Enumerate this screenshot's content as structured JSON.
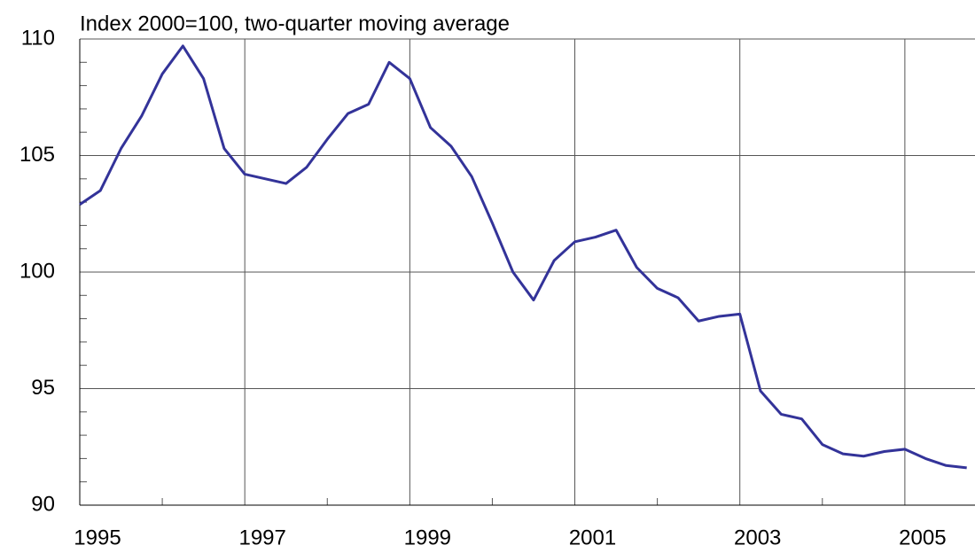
{
  "chart_data": {
    "type": "line",
    "title": "Index 2000=100, two-quarter moving average",
    "x": [
      1995,
      1995.25,
      1995.5,
      1995.75,
      1996,
      1996.25,
      1996.5,
      1996.75,
      1997,
      1997.25,
      1997.5,
      1997.75,
      1998,
      1998.25,
      1998.5,
      1998.75,
      1999,
      1999.25,
      1999.5,
      1999.75,
      2000,
      2000.25,
      2000.5,
      2000.75,
      2001,
      2001.25,
      2001.5,
      2001.75,
      2002,
      2002.25,
      2002.5,
      2002.75,
      2003,
      2003.25,
      2003.5,
      2003.75,
      2004,
      2004.25,
      2004.5,
      2004.75,
      2005,
      2005.25,
      2005.5,
      2005.75
    ],
    "series": [
      {
        "color": "#333399",
        "values": [
          102.9,
          103.5,
          105.3,
          106.7,
          108.5,
          109.7,
          108.3,
          105.3,
          104.2,
          104.0,
          103.8,
          104.5,
          105.7,
          106.8,
          107.2,
          109.0,
          108.3,
          106.2,
          105.4,
          104.1,
          102.1,
          100.0,
          98.8,
          100.5,
          101.3,
          101.5,
          101.8,
          100.2,
          99.3,
          98.9,
          97.9,
          98.1,
          98.2,
          94.9,
          93.9,
          93.7,
          92.6,
          92.2,
          92.1,
          92.3,
          92.4,
          92.0,
          91.7,
          91.6
        ]
      }
    ],
    "xlim": [
      1995,
      2005.85
    ],
    "xticks": [
      1995,
      1997,
      1999,
      2001,
      2003,
      2005
    ],
    "xminorticks": [
      1996,
      1998,
      2000,
      2002,
      2004
    ],
    "ylim": [
      90,
      110
    ],
    "yticks": [
      90,
      95,
      100,
      105,
      110
    ],
    "yminorticks": [
      91,
      92,
      93,
      94,
      96,
      97,
      98,
      99,
      101,
      102,
      103,
      104,
      106,
      107,
      108,
      109
    ],
    "grid": true
  }
}
